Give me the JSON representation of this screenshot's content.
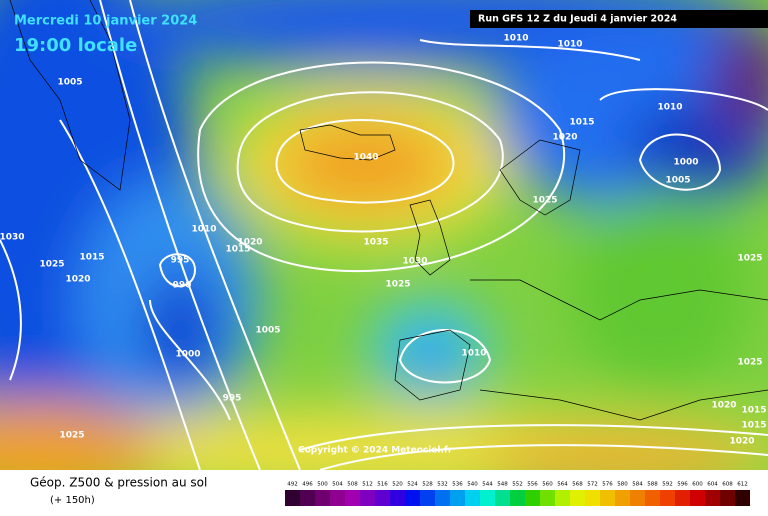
{
  "header": {
    "date": "Mercredi 10 janvier 2024",
    "time": "19:00 locale",
    "run": "Run GFS 12 Z du Jeudi 4 janvier 2024"
  },
  "footer": {
    "title": "Géop. Z500 & pression au sol",
    "lead": "(+ 150h)",
    "copyright": "Copyright © 2024 Meteociel.fr"
  },
  "isobar_labels": [
    1005,
    1010,
    1010,
    1015,
    1020,
    1010,
    1000,
    1005,
    1040,
    1025,
    1035,
    1030,
    1025,
    1010,
    1015,
    1020,
    995,
    990,
    1030,
    1025,
    1015,
    1020,
    1005,
    1000,
    995,
    1010,
    1025,
    1025,
    1020,
    1015,
    1015,
    1020,
    1025
  ],
  "scale_labels": [
    492,
    496,
    500,
    504,
    508,
    512,
    516,
    520,
    524,
    528,
    532,
    536,
    540,
    544,
    548,
    552,
    556,
    560,
    564,
    568,
    572,
    576,
    580,
    584,
    588,
    592,
    596,
    600,
    604,
    608,
    612
  ]
}
